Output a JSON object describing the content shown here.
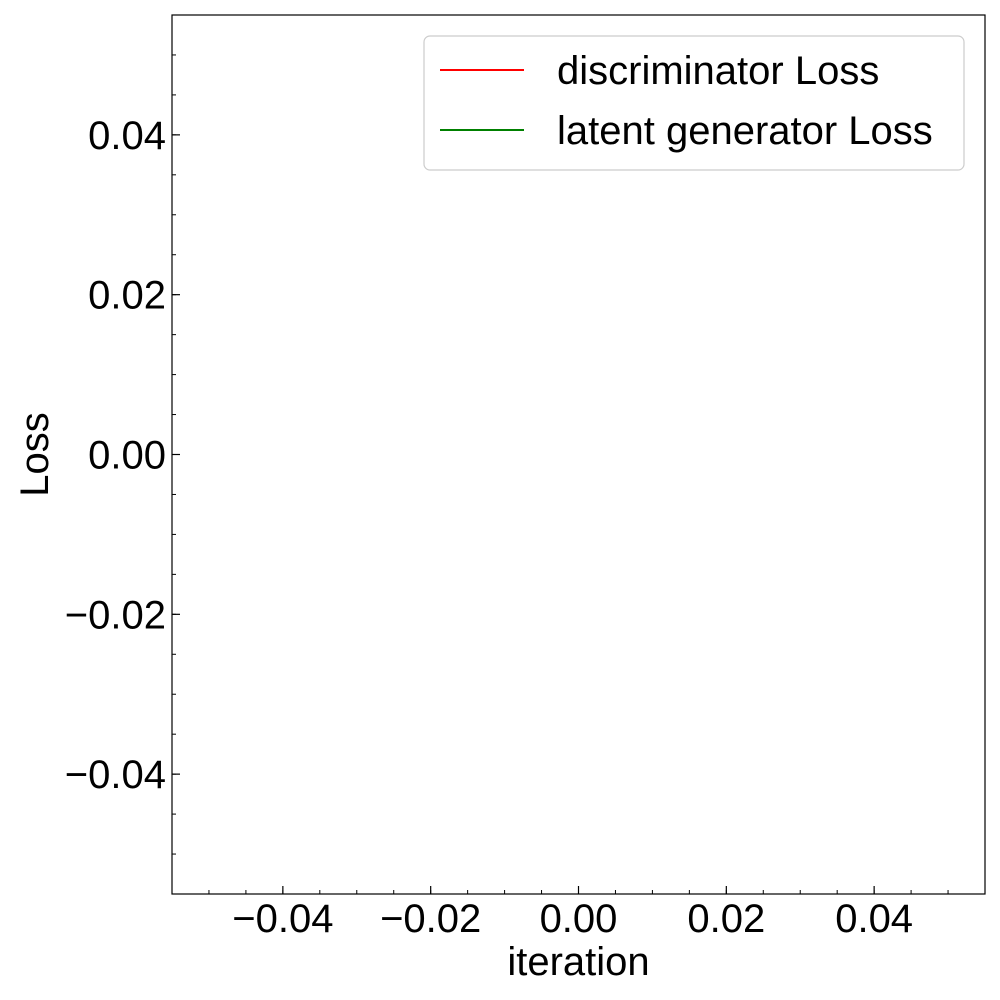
{
  "chart_data": {
    "type": "line",
    "xlabel": "iteration",
    "ylabel": "Loss",
    "xlim": [
      -0.055,
      0.055
    ],
    "ylim": [
      -0.055,
      0.055
    ],
    "x_ticks": [
      -0.04,
      -0.02,
      0.0,
      0.02,
      0.04
    ],
    "x_tick_labels": [
      "−0.04",
      "−0.02",
      "0.00",
      "0.02",
      "0.04"
    ],
    "y_ticks": [
      -0.04,
      -0.02,
      0.0,
      0.02,
      0.04
    ],
    "y_tick_labels": [
      "−0.04",
      "−0.02",
      "0.00",
      "0.02",
      "0.04"
    ],
    "minor_tick_step": 0.005,
    "grid": false,
    "legend_position": "top-right",
    "series": [
      {
        "name": "discriminator Loss",
        "color": "#ff0000",
        "x": [],
        "y": []
      },
      {
        "name": "latent generator Loss",
        "color": "#008000",
        "x": [],
        "y": []
      }
    ]
  }
}
